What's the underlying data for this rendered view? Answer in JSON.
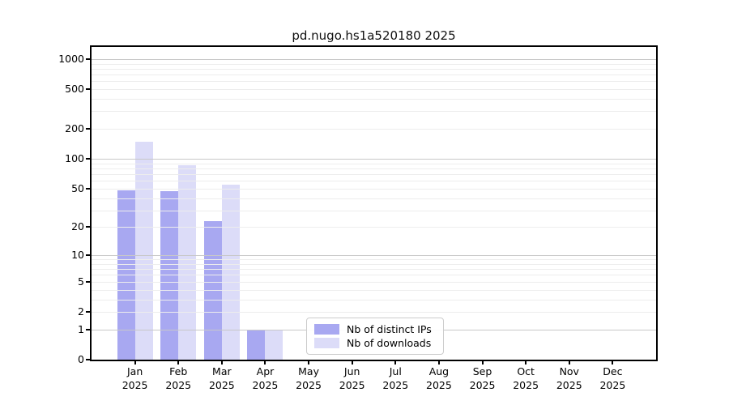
{
  "title": "pd.nugo.hs1a520180 2025",
  "chart_data": {
    "type": "bar",
    "title": "pd.nugo.hs1a520180 2025",
    "x_months": [
      "Jan",
      "Feb",
      "Mar",
      "Apr",
      "May",
      "Jun",
      "Jul",
      "Aug",
      "Sep",
      "Oct",
      "Nov",
      "Dec"
    ],
    "x_year": "2025",
    "categories": [
      "Jan 2025",
      "Feb 2025",
      "Mar 2025",
      "Apr 2025",
      "May 2025",
      "Jun 2025",
      "Jul 2025",
      "Aug 2025",
      "Sep 2025",
      "Oct 2025",
      "Nov 2025",
      "Dec 2025"
    ],
    "series": [
      {
        "name": "Nb of distinct IPs",
        "color": "#a8a8f1",
        "values": [
          48,
          47,
          23,
          1,
          0,
          0,
          0,
          0,
          0,
          0,
          0,
          0
        ]
      },
      {
        "name": "Nb of downloads",
        "color": "#dcdcf8",
        "values": [
          148,
          87,
          55,
          1,
          0,
          0,
          0,
          0,
          0,
          0,
          0,
          0
        ]
      }
    ],
    "yscale": "log1p",
    "yticks": [
      0,
      1,
      2,
      5,
      10,
      20,
      50,
      100,
      200,
      500,
      1000
    ],
    "ylim": [
      0,
      1320
    ],
    "grid": "both",
    "legend_position": "lower center",
    "colors": {
      "major_grid": "#c8c8c8",
      "minor_grid": "#ededed",
      "axis": "#000000",
      "background": "#ffffff"
    }
  },
  "legend": {
    "items": [
      {
        "label": "Nb of distinct IPs",
        "color": "#a8a8f1"
      },
      {
        "label": "Nb of downloads",
        "color": "#dcdcf8"
      }
    ]
  }
}
